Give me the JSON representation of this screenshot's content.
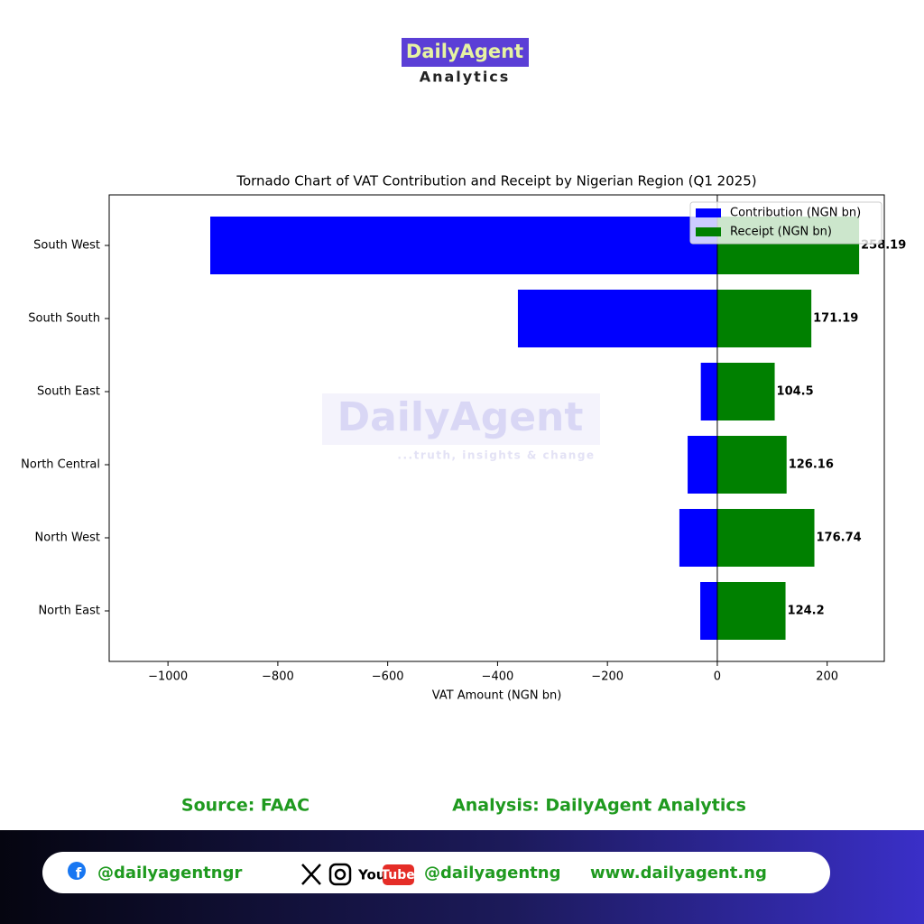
{
  "header": {
    "logo_top": "DailyAgent",
    "logo_bottom": "Analytics"
  },
  "watermark": {
    "name": "DailyAgent",
    "tagline": "...truth, insights & change"
  },
  "chart_data": {
    "type": "bar",
    "orientation": "horizontal",
    "title": "Tornado Chart of VAT Contribution and Receipt by Nigerian Region (Q1 2025)",
    "xlabel": "VAT Amount (NGN bn)",
    "categories": [
      "South West",
      "South South",
      "South East",
      "North Central",
      "North West",
      "North East"
    ],
    "series": [
      {
        "name": "Contribution (NGN bn)",
        "color": "#0000ff",
        "values": [
          -923,
          -363,
          -30,
          -54,
          -69,
          -31
        ],
        "show_labels": false
      },
      {
        "name": "Receipt (NGN bn)",
        "color": "#008000",
        "values": [
          258.19,
          171.19,
          104.5,
          126.16,
          176.74,
          124.2
        ],
        "show_labels": true
      }
    ],
    "xlim": [
      -1107,
      304
    ],
    "xticks": [
      {
        "value": -1000,
        "label": "−1000"
      },
      {
        "value": -800,
        "label": "−800"
      },
      {
        "value": -600,
        "label": "−600"
      },
      {
        "value": -400,
        "label": "−400"
      },
      {
        "value": -200,
        "label": "−200"
      },
      0,
      200
    ],
    "legend": "upper right",
    "grid": false
  },
  "footer": {
    "source": "Source: FAAC",
    "analysis": "Analysis: DailyAgent Analytics",
    "facebook": "@dailyagentngr",
    "youtube_you": "You",
    "youtube_tube": "Tube",
    "handle": "@dailyagentng",
    "website": "www.dailyagent.ng"
  }
}
